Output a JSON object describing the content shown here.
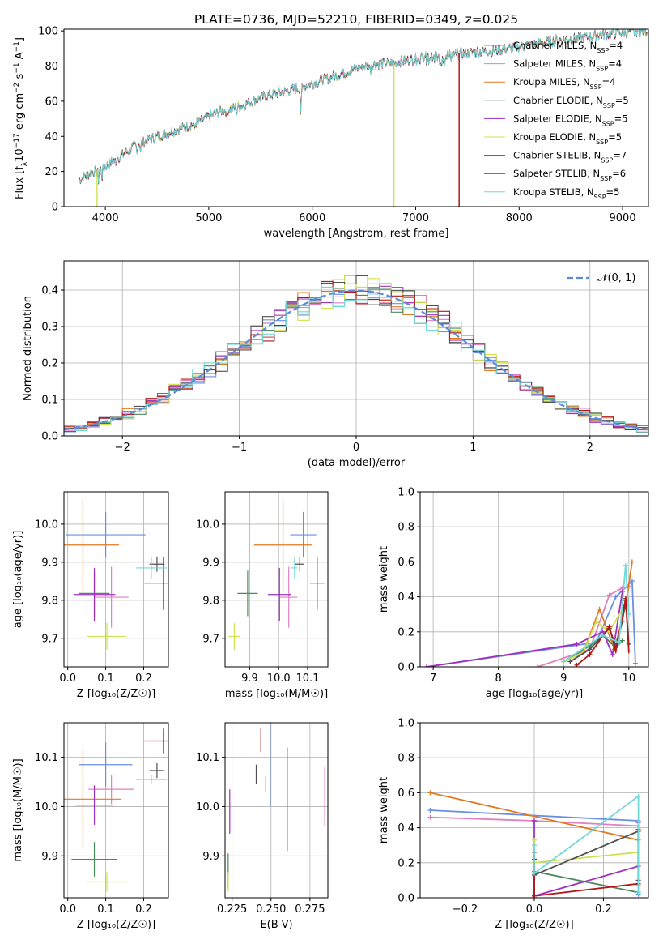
{
  "figure_title": "PLATE=0736, MJD=52210, FIBERID=0349, z=0.025",
  "colors": {
    "Chabrier MILES": "#6a8fe0",
    "Salpeter MILES": "#e080c0",
    "Kroupa MILES": "#e07a20",
    "Chabrier ELODIE": "#4a8a5a",
    "Salpeter ELODIE": "#a030c0",
    "Kroupa ELODIE": "#d0e050",
    "Chabrier STELIB": "#505050",
    "Salpeter STELIB": "#b01818",
    "Kroupa STELIB": "#70d8d8",
    "normal_curve": "#5a8ad8"
  },
  "chart_data": [
    {
      "type": "line",
      "panel": "spectrum",
      "xlabel": "wavelength [Angstrom, rest frame]",
      "ylabel_parts": [
        "Flux [f",
        "λ",
        "10",
        "−17",
        " erg cm",
        "−2",
        " s",
        "−1",
        " A",
        "−1",
        "]"
      ],
      "xlim": [
        3600,
        9250
      ],
      "ylim": [
        0,
        101
      ],
      "xticks": [
        4000,
        5000,
        6000,
        7000,
        8000,
        9000
      ],
      "yticks": [
        0,
        20,
        40,
        60,
        80,
        100
      ],
      "grid": false,
      "legend_position": "upper right",
      "legend": [
        {
          "base": "Chabrier MILES, N",
          "sub": "SSP",
          "tail": "=4"
        },
        {
          "base": "Salpeter MILES, N",
          "sub": "SSP",
          "tail": "=4"
        },
        {
          "base": "Kroupa MILES, N",
          "sub": "SSP",
          "tail": "=4"
        },
        {
          "base": "Chabrier ELODIE, N",
          "sub": "SSP",
          "tail": "=5"
        },
        {
          "base": "Salpeter ELODIE, N",
          "sub": "SSP",
          "tail": "=5"
        },
        {
          "base": "Kroupa ELODIE, N",
          "sub": "SSP",
          "tail": "=5"
        },
        {
          "base": "Chabrier STELIB, N",
          "sub": "SSP",
          "tail": "=7"
        },
        {
          "base": "Salpeter STELIB, N",
          "sub": "SSP",
          "tail": "=6"
        },
        {
          "base": "Kroupa STELIB, N",
          "sub": "SSP",
          "tail": "=5"
        }
      ],
      "continuum": {
        "x": [
          3740,
          3850,
          3950,
          4050,
          4150,
          4300,
          4500,
          4700,
          4900,
          5100,
          5300,
          5500,
          5700,
          5900,
          6100,
          6300,
          6500,
          6600,
          6800,
          7000,
          7200,
          7400,
          7600,
          7800,
          8000,
          8200,
          8400,
          8600,
          8800,
          9000,
          9200
        ],
        "y": [
          15,
          19,
          21,
          25,
          29,
          35,
          40,
          44,
          48,
          54,
          57,
          62,
          65,
          68,
          72,
          76,
          80,
          81,
          82,
          84,
          86,
          87,
          88,
          89,
          91,
          93,
          95,
          96,
          98,
          99,
          100
        ]
      },
      "dropouts": [
        {
          "series": "Kroupa ELODIE",
          "x": 6790
        },
        {
          "series": "Kroupa MILES",
          "x": 7420
        },
        {
          "series": "Salpeter STELIB",
          "x": 7420
        },
        {
          "series": "Kroupa ELODIE",
          "x": 3920
        }
      ]
    },
    {
      "type": "line",
      "panel": "residual_histogram",
      "xlabel": "(data-model)/error",
      "ylabel": "Normed distribution",
      "xlim": [
        -2.5,
        2.5
      ],
      "ylim": [
        0,
        0.48
      ],
      "xticks": [
        -2,
        -1,
        0,
        1,
        2
      ],
      "xtick_labels": [
        "−2",
        "−1",
        "0",
        "1",
        "2"
      ],
      "yticks": [
        0.0,
        0.1,
        0.2,
        0.3,
        0.4
      ],
      "ytick_labels": [
        "0.0",
        "0.1",
        "0.2",
        "0.3",
        "0.4"
      ],
      "grid": true,
      "legend_position": "upper right",
      "legend_label": "𝒩(0, 1)",
      "bin_width": 0.1
    },
    {
      "type": "scatter",
      "panel": "age_vs_Z",
      "xlabel": "Z [log₁₀(Z/Z☉)]",
      "ylabel": "age  [log₁₀(age/yr)]",
      "xlim": [
        -0.01,
        0.265
      ],
      "ylim": [
        9.625,
        10.085
      ],
      "xticks": [
        0.0,
        0.1,
        0.2
      ],
      "xtick_labels": [
        "0.0",
        "0.1",
        "0.2"
      ],
      "yticks": [
        9.7,
        9.8,
        9.9,
        10.0
      ],
      "ytick_labels": [
        "9.7",
        "9.8",
        "9.9",
        "10.0"
      ],
      "grid": true,
      "points": [
        {
          "series": "Chabrier MILES",
          "x": 0.1,
          "xerr": 0.105,
          "y": 9.972,
          "yerr": 0.06
        },
        {
          "series": "Salpeter MILES",
          "x": 0.115,
          "xerr": 0.045,
          "y": 9.808,
          "yerr": 0.08
        },
        {
          "series": "Kroupa MILES",
          "x": 0.04,
          "xerr": 0.095,
          "y": 9.945,
          "yerr": 0.12
        },
        {
          "series": "Chabrier ELODIE",
          "x": 0.07,
          "xerr": 0.04,
          "y": 9.818,
          "yerr": 0.06
        },
        {
          "series": "Salpeter ELODIE",
          "x": 0.07,
          "xerr": 0.055,
          "y": 9.815,
          "yerr": 0.07
        },
        {
          "series": "Kroupa ELODIE",
          "x": 0.103,
          "xerr": 0.052,
          "y": 9.705,
          "yerr": 0.035
        },
        {
          "series": "Chabrier STELIB",
          "x": 0.235,
          "xerr": 0.02,
          "y": 9.895,
          "yerr": 0.02
        },
        {
          "series": "Salpeter STELIB",
          "x": 0.252,
          "xerr": 0.05,
          "y": 9.845,
          "yerr": 0.07
        },
        {
          "series": "Kroupa STELIB",
          "x": 0.22,
          "xerr": 0.04,
          "y": 9.885,
          "yerr": 0.03
        }
      ]
    },
    {
      "type": "scatter",
      "panel": "age_vs_mass",
      "xlabel": "mass [log₁₀(M/M☉)]",
      "xlim": [
        9.815,
        10.17
      ],
      "ylim": [
        9.625,
        10.085
      ],
      "xticks": [
        9.9,
        10.0,
        10.1
      ],
      "xtick_labels": [
        "9.9",
        "10.0",
        "10.1"
      ],
      "yticks": [
        9.7,
        9.8,
        9.9,
        10.0
      ],
      "ytick_labels": [
        "9.7",
        "9.8",
        "9.9",
        "10.0"
      ],
      "grid": true,
      "points": [
        {
          "series": "Chabrier MILES",
          "x": 10.085,
          "xerr": 0.045,
          "y": 9.972,
          "yerr": 0.06
        },
        {
          "series": "Salpeter MILES",
          "x": 10.035,
          "xerr": 0.03,
          "y": 9.808,
          "yerr": 0.08
        },
        {
          "series": "Kroupa MILES",
          "x": 10.015,
          "xerr": 0.1,
          "y": 9.945,
          "yerr": 0.12
        },
        {
          "search_hint": "",
          "series": "Chabrier ELODIE",
          "x": 9.893,
          "xerr": 0.035,
          "y": 9.818,
          "yerr": 0.06
        },
        {
          "series": "Salpeter ELODIE",
          "x": 10.003,
          "xerr": 0.04,
          "y": 9.815,
          "yerr": 0.07
        },
        {
          "series": "Kroupa ELODIE",
          "x": 9.847,
          "xerr": 0.02,
          "y": 9.705,
          "yerr": 0.035
        },
        {
          "series": "Chabrier STELIB",
          "x": 10.073,
          "xerr": 0.015,
          "y": 9.895,
          "yerr": 0.02
        },
        {
          "series": "Salpeter STELIB",
          "x": 10.133,
          "xerr": 0.025,
          "y": 9.845,
          "yerr": 0.07
        },
        {
          "series": "Kroupa STELIB",
          "x": 10.055,
          "xerr": 0.01,
          "y": 9.885,
          "yerr": 0.03
        }
      ]
    },
    {
      "type": "line",
      "panel": "mass_weight_vs_age",
      "xlabel": "age  [log₁₀(age/yr)]",
      "ylabel": "mass weight",
      "xlim": [
        6.8,
        10.3
      ],
      "ylim": [
        0,
        1
      ],
      "xticks": [
        7,
        8,
        9,
        10
      ],
      "xtick_labels": [
        "7",
        "8",
        "9",
        "10"
      ],
      "yticks": [
        0.0,
        0.2,
        0.4,
        0.6,
        0.8,
        1.0
      ],
      "ytick_labels": [
        "0.0",
        "0.2",
        "0.4",
        "0.6",
        "0.8",
        "1.0"
      ],
      "grid": true,
      "series": [
        {
          "name": "Chabrier MILES",
          "x": [
            6.9,
            9.5,
            9.8,
            10.05,
            10.1
          ],
          "y": [
            0.0,
            0.14,
            0.4,
            0.49,
            0.02
          ]
        },
        {
          "name": "Salpeter MILES",
          "x": [
            8.6,
            9.4,
            9.7,
            9.9,
            10.0
          ],
          "y": [
            0.0,
            0.1,
            0.41,
            0.45,
            0.46
          ]
        },
        {
          "name": "Kroupa MILES",
          "x": [
            9.3,
            9.55,
            9.78,
            9.95,
            10.05
          ],
          "y": [
            0.08,
            0.33,
            0.1,
            0.35,
            0.6
          ]
        },
        {
          "name": "Chabrier ELODIE",
          "x": [
            9.0,
            9.4,
            9.6,
            9.8,
            9.9
          ],
          "y": [
            0.03,
            0.12,
            0.18,
            0.11,
            0.15
          ]
        },
        {
          "name": "Salpeter ELODIE",
          "x": [
            6.9,
            9.2,
            9.6,
            9.75,
            9.9
          ],
          "y": [
            0.0,
            0.13,
            0.2,
            0.07,
            0.43
          ]
        },
        {
          "name": "Kroupa ELODIE",
          "x": [
            9.0,
            9.3,
            9.5,
            9.7,
            9.9
          ],
          "y": [
            0.03,
            0.08,
            0.26,
            0.2,
            0.33
          ]
        },
        {
          "name": "Chabrier STELIB",
          "x": [
            9.1,
            9.4,
            9.7,
            9.8,
            9.9,
            9.95,
            10.0
          ],
          "y": [
            0.03,
            0.1,
            0.22,
            0.12,
            0.26,
            0.38,
            0.13
          ]
        },
        {
          "name": "Salpeter STELIB",
          "x": [
            9.2,
            9.4,
            9.7,
            9.8,
            9.95,
            10.0
          ],
          "y": [
            0.01,
            0.07,
            0.23,
            0.09,
            0.39,
            0.09
          ]
        },
        {
          "name": "Kroupa STELIB",
          "x": [
            9.0,
            9.6,
            9.85,
            9.95,
            10.0
          ],
          "y": [
            0.03,
            0.18,
            0.14,
            0.58,
            0.3
          ]
        }
      ]
    },
    {
      "type": "scatter",
      "panel": "mass_vs_Z",
      "xlabel": "Z [log₁₀(Z/Z☉)]",
      "ylabel": "mass [log₁₀(M/M☉)]",
      "xlim": [
        -0.01,
        0.265
      ],
      "ylim": [
        9.815,
        10.17
      ],
      "xticks": [
        0.0,
        0.1,
        0.2
      ],
      "xtick_labels": [
        "0.0",
        "0.1",
        "0.2"
      ],
      "yticks": [
        9.9,
        10.0,
        10.1
      ],
      "ytick_labels": [
        "9.9",
        "10.0",
        "10.1"
      ],
      "grid": true,
      "points": [
        {
          "series": "Chabrier MILES",
          "x": 0.1,
          "xerr": 0.07,
          "y": 10.085,
          "yerr": 0.045
        },
        {
          "series": "Salpeter MILES",
          "x": 0.115,
          "xerr": 0.06,
          "y": 10.035,
          "yerr": 0.03
        },
        {
          "series": "Kroupa MILES",
          "x": 0.04,
          "xerr": 0.1,
          "y": 10.015,
          "yerr": 0.1
        },
        {
          "series": "Chabrier ELODIE",
          "x": 0.07,
          "xerr": 0.06,
          "y": 9.893,
          "yerr": 0.035
        },
        {
          "series": "Salpeter ELODIE",
          "x": 0.07,
          "xerr": 0.05,
          "y": 10.003,
          "yerr": 0.04
        },
        {
          "series": "Kroupa ELODIE",
          "x": 0.103,
          "xerr": 0.055,
          "y": 9.847,
          "yerr": 0.02
        },
        {
          "series": "Chabrier STELIB",
          "x": 0.235,
          "xerr": 0.02,
          "y": 10.073,
          "yerr": 0.015
        },
        {
          "series": "Salpeter STELIB",
          "x": 0.252,
          "xerr": 0.05,
          "y": 10.133,
          "yerr": 0.025
        },
        {
          "series": "Kroupa STELIB",
          "x": 0.22,
          "xerr": 0.04,
          "y": 10.055,
          "yerr": 0.01
        }
      ]
    },
    {
      "type": "scatter",
      "panel": "mass_vs_EBV",
      "xlabel": "E(B-V)",
      "xlim": [
        0.2205,
        0.2865
      ],
      "ylim": [
        9.815,
        10.17
      ],
      "xticks": [
        0.225,
        0.25,
        0.275
      ],
      "xtick_labels": [
        "0.225",
        "0.250",
        "0.275"
      ],
      "yticks": [
        9.9,
        10.0,
        10.1
      ],
      "ytick_labels": [
        "9.9",
        "10.0",
        "10.1"
      ],
      "grid": true,
      "points": [
        {
          "series": "Chabrier MILES",
          "x": 0.2495,
          "xerr": 0.0,
          "y": 10.085,
          "yerr": 0.085
        },
        {
          "series": "Salpeter MILES",
          "x": 0.2845,
          "xerr": 0.0,
          "y": 10.02,
          "yerr": 0.06
        },
        {
          "series": "Kroupa MILES",
          "x": 0.2605,
          "xerr": 0.0,
          "y": 10.015,
          "yerr": 0.105
        },
        {
          "series": "Chabrier ELODIE",
          "x": 0.2225,
          "xerr": 0.0,
          "y": 9.87,
          "yerr": 0.035
        },
        {
          "series": "Salpeter ELODIE",
          "x": 0.2235,
          "xerr": 0.0,
          "y": 9.99,
          "yerr": 0.045
        },
        {
          "series": "Kroupa ELODIE",
          "x": 0.2225,
          "xerr": 0.0,
          "y": 9.847,
          "yerr": 0.02
        },
        {
          "series": "Chabrier STELIB",
          "x": 0.2405,
          "xerr": 0.0,
          "y": 10.065,
          "yerr": 0.02
        },
        {
          "series": "Salpeter STELIB",
          "x": 0.2435,
          "xerr": 0.0,
          "y": 10.135,
          "yerr": 0.025
        },
        {
          "series": "Kroupa STELIB",
          "x": 0.2465,
          "xerr": 0.0,
          "y": 10.045,
          "yerr": 0.015
        }
      ]
    },
    {
      "type": "line",
      "panel": "mass_weight_vs_Z",
      "xlabel": "Z [log₁₀(Z/Z☉)]",
      "ylabel": "mass weight",
      "xlim": [
        -0.33,
        0.33
      ],
      "ylim": [
        0,
        1
      ],
      "xticks": [
        -0.2,
        0.0,
        0.2
      ],
      "xtick_labels": [
        "−0.2",
        "0.0",
        "0.2"
      ],
      "yticks": [
        0.0,
        0.2,
        0.4,
        0.6,
        0.8,
        1.0
      ],
      "ytick_labels": [
        "0.0",
        "0.2",
        "0.4",
        "0.6",
        "0.8",
        "1.0"
      ],
      "grid": true,
      "series": [
        {
          "name": "Chabrier MILES",
          "x": [
            -0.301,
            0.301,
            0.301
          ],
          "y": [
            0.5,
            0.44,
            0.02
          ]
        },
        {
          "name": "Salpeter MILES",
          "x": [
            -0.301,
            0.0,
            0.301
          ],
          "y": [
            0.46,
            0.44,
            0.41
          ]
        },
        {
          "name": "Kroupa MILES",
          "x": [
            -0.301,
            0.301,
            0.301
          ],
          "y": [
            0.6,
            0.33,
            0.07
          ]
        },
        {
          "name": "Chabrier ELODIE",
          "x": [
            0.0,
            0.0,
            0.301
          ],
          "y": [
            0.0,
            0.15,
            0.03
          ]
        },
        {
          "name": "Salpeter ELODIE",
          "x": [
            0.0,
            0.0,
            0.301,
            0.301
          ],
          "y": [
            0.44,
            0.01,
            0.18,
            0.43
          ]
        },
        {
          "name": "Kroupa ELODIE",
          "x": [
            0.0,
            0.0,
            0.301,
            0.301
          ],
          "y": [
            0.33,
            0.2,
            0.26,
            0.03
          ]
        },
        {
          "name": "Chabrier STELIB",
          "x": [
            0.0,
            0.0,
            0.301,
            0.301
          ],
          "y": [
            0.26,
            0.13,
            0.38,
            0.1
          ]
        },
        {
          "name": "Salpeter STELIB",
          "x": [
            0.0,
            0.0,
            0.301,
            0.301
          ],
          "y": [
            0.22,
            0.01,
            0.08,
            0.39
          ]
        },
        {
          "name": "Kroupa STELIB",
          "x": [
            0.0,
            0.0,
            0.301,
            0.301
          ],
          "y": [
            0.3,
            0.14,
            0.58,
            0.03
          ]
        }
      ]
    }
  ]
}
